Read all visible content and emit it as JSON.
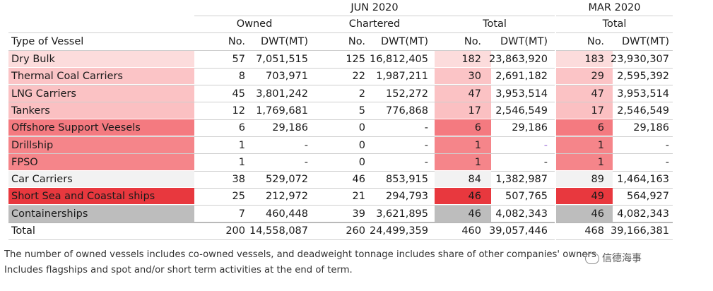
{
  "header": {
    "period_current": "JUN 2020",
    "period_prev": "MAR 2020",
    "group_owned": "Owned",
    "group_chartered": "Chartered",
    "group_total": "Total",
    "group_total_prev": "Total",
    "col_type": "Type of Vessel",
    "col_no": "No.",
    "col_dwt": "DWT(MT)"
  },
  "rows": [
    {
      "type": "Dry Bulk",
      "own_no": "57",
      "own_dwt": "7,051,515",
      "ch_no": "125",
      "ch_dwt": "16,812,405",
      "tot_no": "182",
      "tot_dwt": "23,863,920",
      "prev_no": "183",
      "prev_dwt": "23,930,307",
      "color": "#fcdcdc"
    },
    {
      "type": "Thermal Coal Carriers",
      "own_no": "8",
      "own_dwt": "703,971",
      "ch_no": "22",
      "ch_dwt": "1,987,211",
      "tot_no": "30",
      "tot_dwt": "2,691,182",
      "prev_no": "29",
      "prev_dwt": "2,595,392",
      "color": "#fbc4c6"
    },
    {
      "type": "LNG Carriers",
      "own_no": "45",
      "own_dwt": "3,801,242",
      "ch_no": "2",
      "ch_dwt": "152,272",
      "tot_no": "47",
      "tot_dwt": "3,953,514",
      "prev_no": "47",
      "prev_dwt": "3,953,514",
      "color": "#fbc2c4"
    },
    {
      "type": "Tankers",
      "own_no": "12",
      "own_dwt": "1,769,681",
      "ch_no": "5",
      "ch_dwt": "776,868",
      "tot_no": "17",
      "tot_dwt": "2,546,549",
      "prev_no": "17",
      "prev_dwt": "2,546,549",
      "color": "#fbc0c2"
    },
    {
      "type": "Offshore Support Veesels",
      "own_no": "6",
      "own_dwt": "29,186",
      "ch_no": "0",
      "ch_dwt": "-",
      "tot_no": "6",
      "tot_dwt": "29,186",
      "prev_no": "6",
      "prev_dwt": "29,186",
      "color": "#f47a80"
    },
    {
      "type": "Drillship",
      "own_no": "1",
      "own_dwt": "-",
      "ch_no": "0",
      "ch_dwt": "-",
      "tot_no": "1",
      "tot_dwt": "-",
      "prev_no": "1",
      "prev_dwt": "-",
      "color": "#f5858a"
    },
    {
      "type": "FPSO",
      "own_no": "1",
      "own_dwt": "-",
      "ch_no": "0",
      "ch_dwt": "-",
      "tot_no": "1",
      "tot_dwt": "-",
      "prev_no": "1",
      "prev_dwt": "-",
      "color": "#f5858a"
    },
    {
      "type": "Car Carriers",
      "own_no": "38",
      "own_dwt": "529,072",
      "ch_no": "46",
      "ch_dwt": "853,915",
      "tot_no": "84",
      "tot_dwt": "1,382,987",
      "prev_no": "89",
      "prev_dwt": "1,464,163",
      "color": "#f2f2f2"
    },
    {
      "type": "Short Sea and Coastal ships",
      "own_no": "25",
      "own_dwt": "212,972",
      "ch_no": "21",
      "ch_dwt": "294,793",
      "tot_no": "46",
      "tot_dwt": "507,765",
      "prev_no": "49",
      "prev_dwt": "564,927",
      "color": "#e8383e"
    },
    {
      "type": "Containerships",
      "own_no": "7",
      "own_dwt": "460,448",
      "ch_no": "39",
      "ch_dwt": "3,621,895",
      "tot_no": "46",
      "tot_dwt": "4,082,343",
      "prev_no": "46",
      "prev_dwt": "4,082,343",
      "color": "#bdbdbd"
    },
    {
      "type": "Total",
      "own_no": "200",
      "own_dwt": "14,558,087",
      "ch_no": "260",
      "ch_dwt": "24,499,359",
      "tot_no": "460",
      "tot_dwt": "39,057,446",
      "prev_no": "468",
      "prev_dwt": "39,166,381",
      "color": ""
    }
  ],
  "notes": [
    "The number of owned vessels includes co-owned vessels, and deadweight tonnage includes share of other companies' owners",
    "Includes flagships and spot and/or short term activities at the end of term."
  ],
  "watermark": "信德海事"
}
